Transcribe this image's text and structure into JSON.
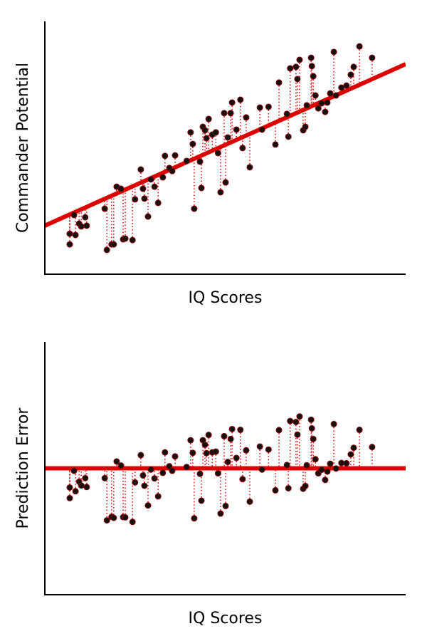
{
  "chart_data": [
    {
      "type": "scatter",
      "xlabel": "IQ Scores",
      "ylabel": "Commander Potential",
      "xlim": [
        0,
        100
      ],
      "ylim": [
        0,
        100
      ],
      "point_color": "#111111",
      "line_color": "#dd0000",
      "fit_line": {
        "x": [
          0,
          100
        ],
        "y": [
          19.2,
          83.1
        ]
      },
      "x": [
        6.9,
        6.9,
        8.1,
        8.5,
        9.5,
        10.1,
        11.2,
        11.6,
        16.6,
        17.2,
        18.5,
        19.1,
        19.9,
        21.1,
        21.7,
        22.3,
        24.3,
        25,
        26.6,
        27.2,
        27.6,
        28.6,
        29.4,
        30.4,
        31.4,
        32.7,
        33.3,
        34.5,
        35.3,
        36.1,
        39.3,
        40.4,
        41,
        41.4,
        43,
        43.4,
        43.8,
        44.4,
        44.8,
        45.4,
        46.4,
        47.4,
        48,
        48.7,
        49.7,
        50.1,
        50.7,
        51.5,
        51.9,
        53.1,
        54.2,
        54.8,
        55.8,
        56.8,
        59.6,
        60.2,
        62,
        63.9,
        64.9,
        67.1,
        67.5,
        68,
        69.6,
        70,
        70.6,
        71.6,
        72.2,
        72.6,
        73.8,
        74,
        74.4,
        75,
        75.8,
        76.7,
        77.7,
        78.3,
        79.1,
        80.1,
        80.7,
        82.2,
        83.6,
        84.8,
        85.6,
        87.2,
        90.7
      ],
      "values": [
        11.8,
        16,
        23.4,
        15.5,
        20,
        18.9,
        22.5,
        19.2,
        25.9,
        9.6,
        11.8,
        11.8,
        34.6,
        33.8,
        13.8,
        14.1,
        13.5,
        29.6,
        41.4,
        33.8,
        29.9,
        22.8,
        37.5,
        34.6,
        28.2,
        38.3,
        46.8,
        42,
        40.8,
        47,
        44.8,
        56.1,
        51.5,
        25.9,
        44.5,
        34.1,
        58.3,
        56.9,
        53.8,
        61.4,
        55.2,
        56.1,
        47.9,
        32.4,
        63.7,
        36.3,
        54.1,
        63.7,
        67.9,
        57.2,
        69,
        49.9,
        62,
        42.3,
        65.9,
        57.2,
        66.2,
        51.3,
        75.8,
        63.4,
        54.4,
        81.4,
        82,
        77.2,
        84.8,
        56.9,
        58.3,
        66.8,
        85.6,
        82.3,
        78.3,
        70.7,
        65.6,
        67.6,
        64.2,
        67.9,
        71.5,
        87.9,
        70.7,
        73.8,
        74.6,
        78.9,
        82,
        90.1,
        85.6
      ]
    },
    {
      "type": "scatter",
      "xlabel": "IQ Scores",
      "ylabel": "Prediction Error",
      "xlim": [
        0,
        100
      ],
      "ylim": [
        -50,
        50
      ],
      "point_color": "#111111",
      "line_color": "#dd0000",
      "fit_line": {
        "x": [
          0,
          100
        ],
        "y": [
          0,
          0
        ]
      },
      "x": [
        6.9,
        6.9,
        8.1,
        8.5,
        9.5,
        10.1,
        11.2,
        11.6,
        16.6,
        17.2,
        18.5,
        19.1,
        19.9,
        21.1,
        21.7,
        22.3,
        24.3,
        25,
        26.6,
        27.2,
        27.6,
        28.6,
        29.4,
        30.4,
        31.4,
        32.7,
        33.3,
        34.5,
        35.3,
        36.1,
        39.3,
        40.4,
        41,
        41.4,
        43,
        43.4,
        43.8,
        44.4,
        44.8,
        45.4,
        46.4,
        47.4,
        48,
        48.7,
        49.7,
        50.1,
        50.7,
        51.5,
        51.9,
        53.1,
        54.2,
        54.8,
        55.8,
        56.8,
        59.6,
        60.2,
        62,
        63.9,
        64.9,
        67.1,
        67.5,
        68,
        69.6,
        70,
        70.6,
        71.6,
        72.2,
        72.6,
        73.8,
        74,
        74.4,
        75,
        75.8,
        76.7,
        77.7,
        78.3,
        79.1,
        80.1,
        80.7,
        82.2,
        83.6,
        84.8,
        85.6,
        87.2,
        90.7
      ],
      "values": [
        -11.8,
        -7.6,
        -1.0,
        -9.1,
        -5.3,
        -6.8,
        -3.9,
        -7.4,
        -3.9,
        -20.6,
        -19.2,
        -19.6,
        2.7,
        1.1,
        -19.3,
        -19.4,
        -21.2,
        -5.6,
        5.2,
        -2.8,
        -6.9,
        -14.7,
        -0.5,
        -4.0,
        -11.1,
        -1.8,
        6.3,
        0.8,
        -1.0,
        4.7,
        0.5,
        11.1,
        6.1,
        -19.8,
        -2.2,
        -12.8,
        11.1,
        9.3,
        6.0,
        13.2,
        6.3,
        6.6,
        -2.0,
        -17.9,
        12.7,
        -14.9,
        2.5,
        11.6,
        15.5,
        4.1,
        15.2,
        -4.3,
        7.1,
        -13.2,
        8.6,
        -0.5,
        7.4,
        -8.7,
        15.1,
        1.3,
        -7.9,
        18.7,
        18.3,
        13.3,
        20.5,
        -8.1,
        -7.0,
        1.2,
        19.2,
        15.8,
        11.6,
        3.6,
        -2.0,
        -0.6,
        -4.6,
        -1.3,
        1.8,
        17.5,
        -0.1,
        2.1,
        2.0,
        5.5,
        8.1,
        15.2,
        8.4
      ]
    }
  ]
}
